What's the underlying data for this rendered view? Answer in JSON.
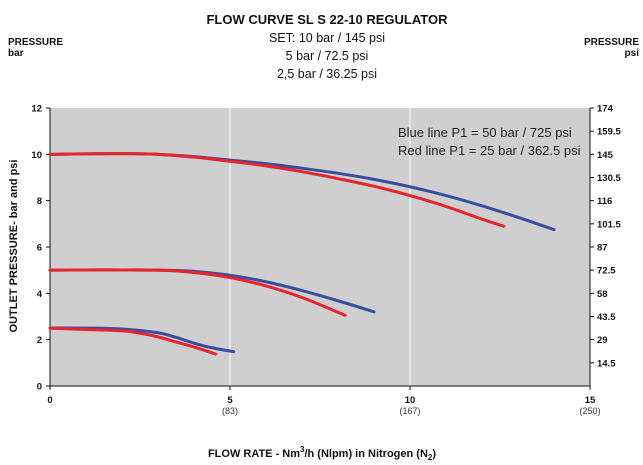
{
  "chart_data": {
    "type": "line",
    "title": "FLOW CURVE SL S 22-10 REGULATOR",
    "set_lines": [
      "SET: 10 bar / 145 psi",
      "5 bar / 72.5 psi",
      "2,5 bar / 36.25 psi"
    ],
    "left_unit_title": "PRESSURE",
    "left_unit": "bar",
    "right_unit_title": "PRESSURE",
    "right_unit": "psi",
    "ylabel": "OUTLET PRESSURE- bar and psi",
    "xlabel_parts": [
      "FLOW RATE - Nm",
      "3",
      "/h (Nlpm) in Nitrogen (N",
      "2",
      ")"
    ],
    "xlim": [
      0,
      15
    ],
    "ylim": [
      0,
      12
    ],
    "x_ticks": [
      {
        "value": 0,
        "label": "0",
        "sub": ""
      },
      {
        "value": 5,
        "label": "5",
        "sub": "(83)"
      },
      {
        "value": 10,
        "label": "10",
        "sub": "(167)"
      },
      {
        "value": 15,
        "label": "15",
        "sub": "(250)"
      }
    ],
    "y_ticks_left": [
      0,
      2,
      4,
      6,
      8,
      10,
      12
    ],
    "y_ticks_right": [
      {
        "value": 1,
        "label": "14.5"
      },
      {
        "value": 2,
        "label": "29"
      },
      {
        "value": 3,
        "label": "43.5"
      },
      {
        "value": 4,
        "label": "58"
      },
      {
        "value": 5,
        "label": "72.5"
      },
      {
        "value": 6,
        "label": "87"
      },
      {
        "value": 7,
        "label": "101.5"
      },
      {
        "value": 8,
        "label": "116"
      },
      {
        "value": 9,
        "label": "130.5"
      },
      {
        "value": 10,
        "label": "145"
      },
      {
        "value": 11,
        "label": "159.5"
      },
      {
        "value": 12,
        "label": "174"
      }
    ],
    "vertical_grid": [
      5,
      10
    ],
    "annotations": [
      "Blue line P1 = 50 bar / 725 psi",
      "Red line P1 = 25 bar / 362.5 psi"
    ],
    "colors": {
      "blue": "#3a4ea0",
      "red": "#e8242c",
      "plot_bg": "#cfcfcf",
      "grid": "#ffffff"
    },
    "series": [
      {
        "color": "blue",
        "set": 10,
        "x": [
          0,
          1,
          2,
          3,
          4,
          5,
          6,
          7,
          8,
          9,
          10,
          11,
          12,
          13,
          14
        ],
        "y": [
          10.0,
          10.02,
          10.03,
          10.0,
          9.9,
          9.75,
          9.6,
          9.4,
          9.18,
          8.92,
          8.6,
          8.22,
          7.78,
          7.28,
          6.75
        ]
      },
      {
        "color": "red",
        "set": 10,
        "x": [
          0,
          1,
          2,
          3,
          4,
          5,
          6,
          7,
          8,
          9,
          10,
          11,
          12,
          12.6
        ],
        "y": [
          10.0,
          10.02,
          10.03,
          10.0,
          9.88,
          9.7,
          9.5,
          9.25,
          8.95,
          8.62,
          8.22,
          7.75,
          7.2,
          6.9
        ]
      },
      {
        "color": "blue",
        "set": 5,
        "x": [
          0,
          1,
          2,
          3,
          4,
          5,
          6,
          7,
          8,
          9
        ],
        "y": [
          5.0,
          5.01,
          5.01,
          5.0,
          4.95,
          4.78,
          4.5,
          4.12,
          3.68,
          3.2
        ]
      },
      {
        "color": "red",
        "set": 5,
        "x": [
          0,
          1,
          2,
          3,
          4,
          5,
          6,
          7,
          8.2
        ],
        "y": [
          5.0,
          5.01,
          5.01,
          5.0,
          4.9,
          4.68,
          4.32,
          3.82,
          3.05
        ]
      },
      {
        "color": "blue",
        "set": 2.5,
        "x": [
          0,
          1,
          2,
          3,
          3.5,
          4,
          4.5,
          5.1
        ],
        "y": [
          2.5,
          2.5,
          2.46,
          2.3,
          2.1,
          1.85,
          1.65,
          1.48
        ]
      },
      {
        "color": "red",
        "set": 2.5,
        "x": [
          0,
          1,
          2,
          2.5,
          3,
          3.5,
          4,
          4.6
        ],
        "y": [
          2.5,
          2.44,
          2.38,
          2.28,
          2.12,
          1.9,
          1.68,
          1.38
        ]
      }
    ]
  }
}
